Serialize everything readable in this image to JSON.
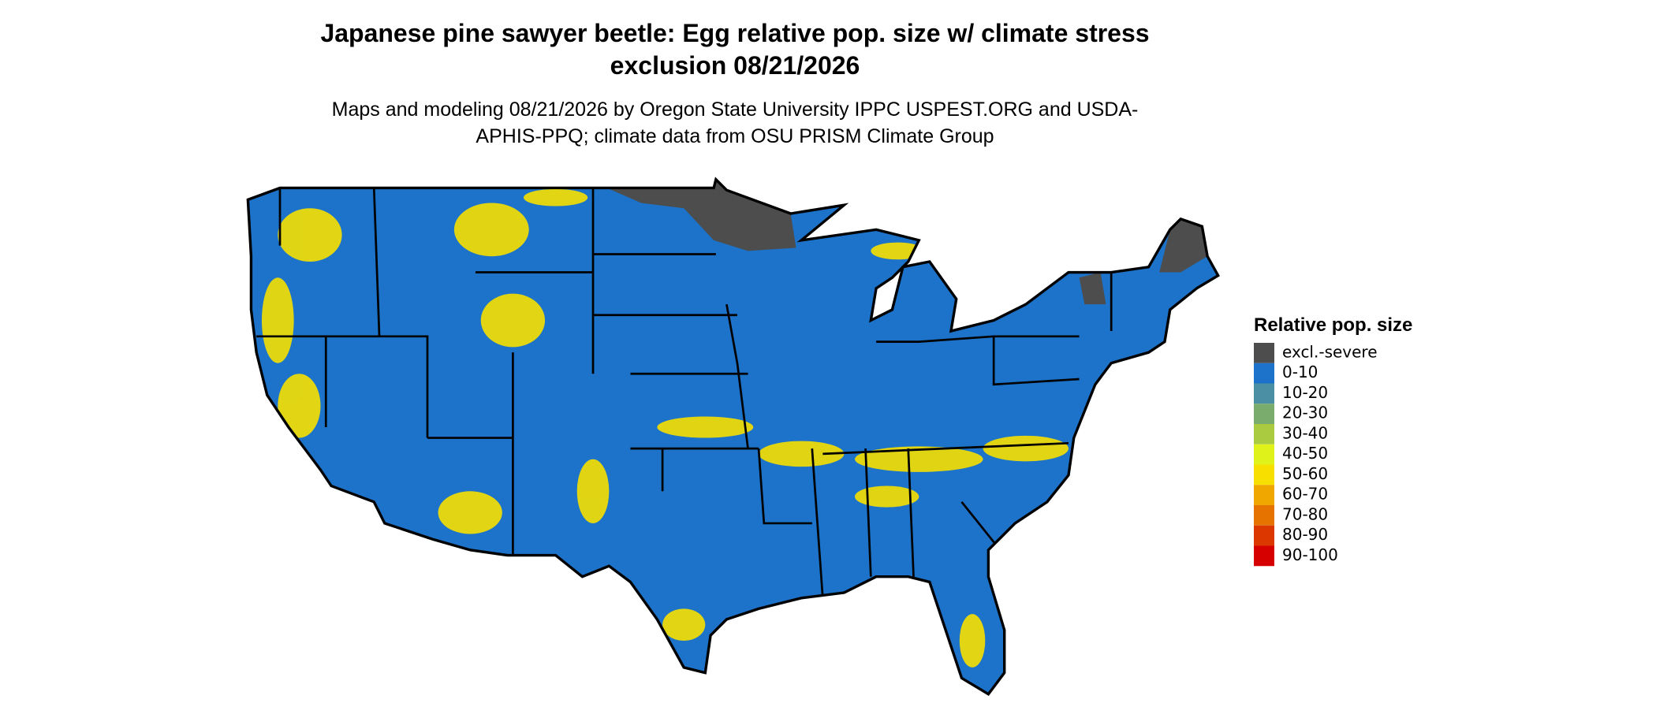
{
  "title": "Japanese pine sawyer beetle: Egg relative pop. size w/ climate stress exclusion 08/21/2026",
  "subtitle": "Maps and modeling 08/21/2026 by Oregon State University IPPC USPEST.ORG and USDA-APHIS-PPQ; climate data from OSU PRISM Climate Group",
  "legend": {
    "title": "Relative pop. size",
    "items": [
      {
        "label": "excl.-severe",
        "color": "#4d4d4d"
      },
      {
        "label": "0-10",
        "color": "#1c73c9"
      },
      {
        "label": "10-20",
        "color": "#4a8fa3"
      },
      {
        "label": "20-30",
        "color": "#7aac6e"
      },
      {
        "label": "30-40",
        "color": "#aacb3f"
      },
      {
        "label": "40-50",
        "color": "#dff21a"
      },
      {
        "label": "50-60",
        "color": "#f7e000"
      },
      {
        "label": "60-70",
        "color": "#f0a800"
      },
      {
        "label": "70-80",
        "color": "#e67300"
      },
      {
        "label": "80-90",
        "color": "#dd3700"
      },
      {
        "label": "90-100",
        "color": "#d60000"
      }
    ]
  }
}
